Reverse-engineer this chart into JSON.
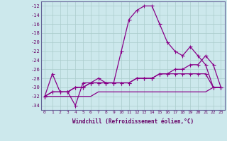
{
  "xlabel": "Windchill (Refroidissement éolien,°C)",
  "bg_color": "#cce8ec",
  "grid_color": "#aacccc",
  "line_color": "#880088",
  "yticks": [
    -34,
    -32,
    -30,
    -28,
    -26,
    -24,
    -22,
    -20,
    -18,
    -16,
    -14,
    -12
  ],
  "xticks": [
    0,
    1,
    2,
    3,
    4,
    5,
    6,
    7,
    8,
    9,
    10,
    11,
    12,
    13,
    14,
    15,
    16,
    17,
    18,
    19,
    20,
    21,
    22,
    23
  ],
  "xlim": [
    -0.5,
    23.5
  ],
  "ylim": [
    -35.0,
    -11.0
  ],
  "line1_x": [
    0,
    1,
    2,
    3,
    4,
    5,
    6,
    7,
    8,
    9,
    10,
    11,
    12,
    13,
    14,
    15,
    16,
    17,
    18,
    19,
    20,
    21,
    22,
    23
  ],
  "line1_y": [
    -32,
    -27,
    -31,
    -31,
    -34,
    -29,
    -29,
    -28,
    -29,
    -29,
    -22,
    -15,
    -13,
    -12,
    -12,
    -16,
    -20,
    -22,
    -23,
    -21,
    -23,
    -25,
    -30,
    -30
  ],
  "line2_x": [
    0,
    1,
    2,
    3,
    4,
    5,
    6,
    7,
    8,
    9,
    10,
    11,
    12,
    13,
    14,
    15,
    16,
    17,
    18,
    19,
    20,
    21,
    22,
    23
  ],
  "line2_y": [
    -32,
    -31,
    -31,
    -31,
    -30,
    -30,
    -29,
    -29,
    -29,
    -29,
    -29,
    -29,
    -28,
    -28,
    -28,
    -27,
    -27,
    -26,
    -26,
    -25,
    -25,
    -23,
    -25,
    -30
  ],
  "line3_x": [
    0,
    1,
    2,
    3,
    4,
    5,
    6,
    7,
    8,
    9,
    10,
    11,
    12,
    13,
    14,
    15,
    16,
    17,
    18,
    19,
    20,
    21,
    22,
    23
  ],
  "line3_y": [
    -32,
    -31,
    -31,
    -31,
    -30,
    -30,
    -29,
    -29,
    -29,
    -29,
    -29,
    -29,
    -28,
    -28,
    -28,
    -27,
    -27,
    -27,
    -27,
    -27,
    -27,
    -27,
    -30,
    -30
  ],
  "line4_x": [
    0,
    1,
    2,
    3,
    4,
    5,
    6,
    7,
    8,
    9,
    10,
    11,
    12,
    13,
    14,
    15,
    16,
    17,
    18,
    19,
    20,
    21,
    22,
    23
  ],
  "line4_y": [
    -32,
    -32,
    -32,
    -32,
    -32,
    -32,
    -32,
    -31,
    -31,
    -31,
    -31,
    -31,
    -31,
    -31,
    -31,
    -31,
    -31,
    -31,
    -31,
    -31,
    -31,
    -31,
    -30,
    -30
  ]
}
